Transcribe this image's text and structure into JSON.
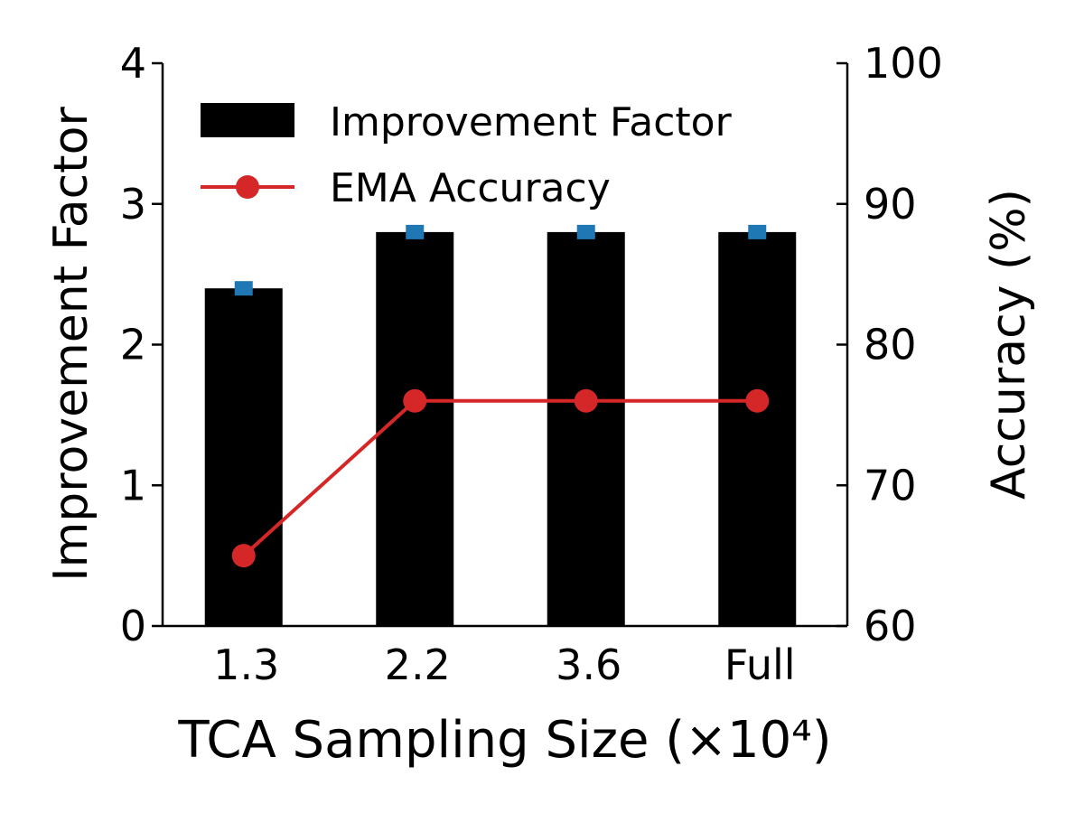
{
  "chart_data": {
    "type": "bar",
    "categories": [
      "1.3",
      "2.2",
      "3.6",
      "Full"
    ],
    "xlabel": "TCA Sampling Size (×10⁴)",
    "ylabel_left": "Improvement Factor",
    "ylabel_right": "Accuracy (%)",
    "ylim_left": [
      0,
      4
    ],
    "ylim_right": [
      60,
      100
    ],
    "yticks_left": [
      "0",
      "1",
      "2",
      "3",
      "4"
    ],
    "yticks_right": [
      "60",
      "70",
      "80",
      "90",
      "100"
    ],
    "grid": false,
    "legend_position": "top-left",
    "series": [
      {
        "name": "Improvement Factor",
        "kind": "bar",
        "axis": "left",
        "color": "#000000",
        "values": [
          2.4,
          2.8,
          2.8,
          2.8
        ],
        "marker_color": "#1f77b4"
      },
      {
        "name": "EMA Accuracy",
        "kind": "line",
        "axis": "right",
        "color": "#d62728",
        "values": [
          65.0,
          76.0,
          76.0,
          76.0
        ]
      }
    ]
  }
}
